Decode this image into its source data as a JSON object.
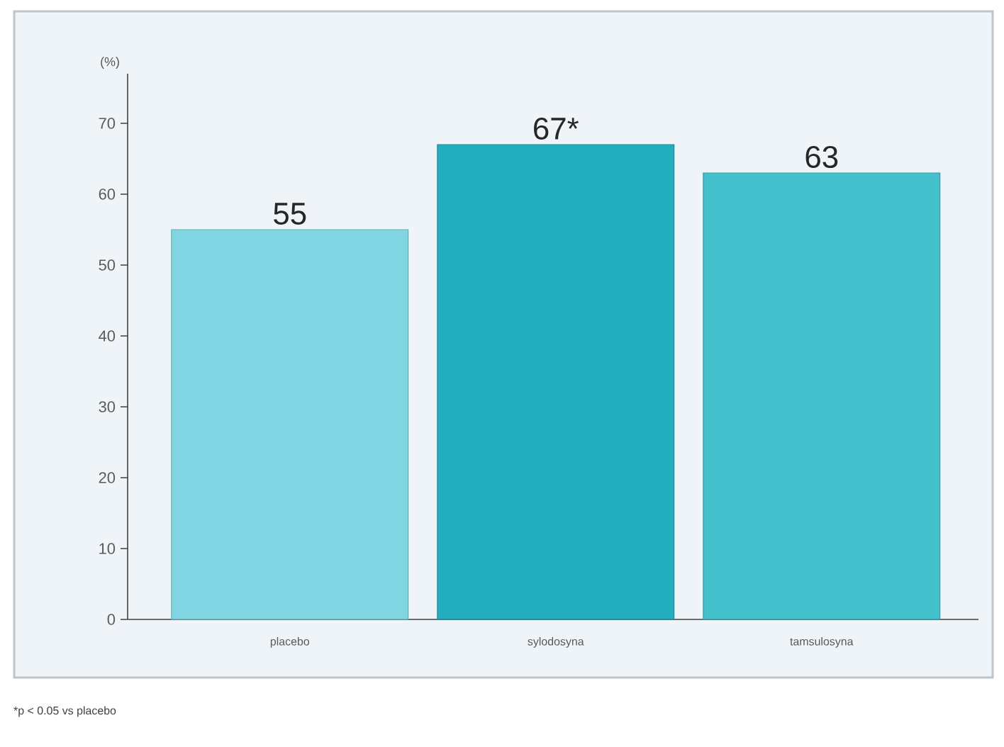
{
  "chart_data": {
    "type": "bar",
    "ylabel": "(%)",
    "categories": [
      "placebo",
      "sylodosyna",
      "tamsulosyna"
    ],
    "values": [
      55,
      67,
      63
    ],
    "colors": [
      "#7fd6e2",
      "#22aebf",
      "#45c0cd"
    ],
    "value_labels": [
      "55",
      "67*",
      "63"
    ],
    "ylim": [
      0,
      77
    ],
    "yticks": [
      0,
      10,
      20,
      30,
      40,
      50,
      60,
      70
    ],
    "grid": false,
    "annotations": [
      "*p < 0.05 vs placebo"
    ]
  }
}
